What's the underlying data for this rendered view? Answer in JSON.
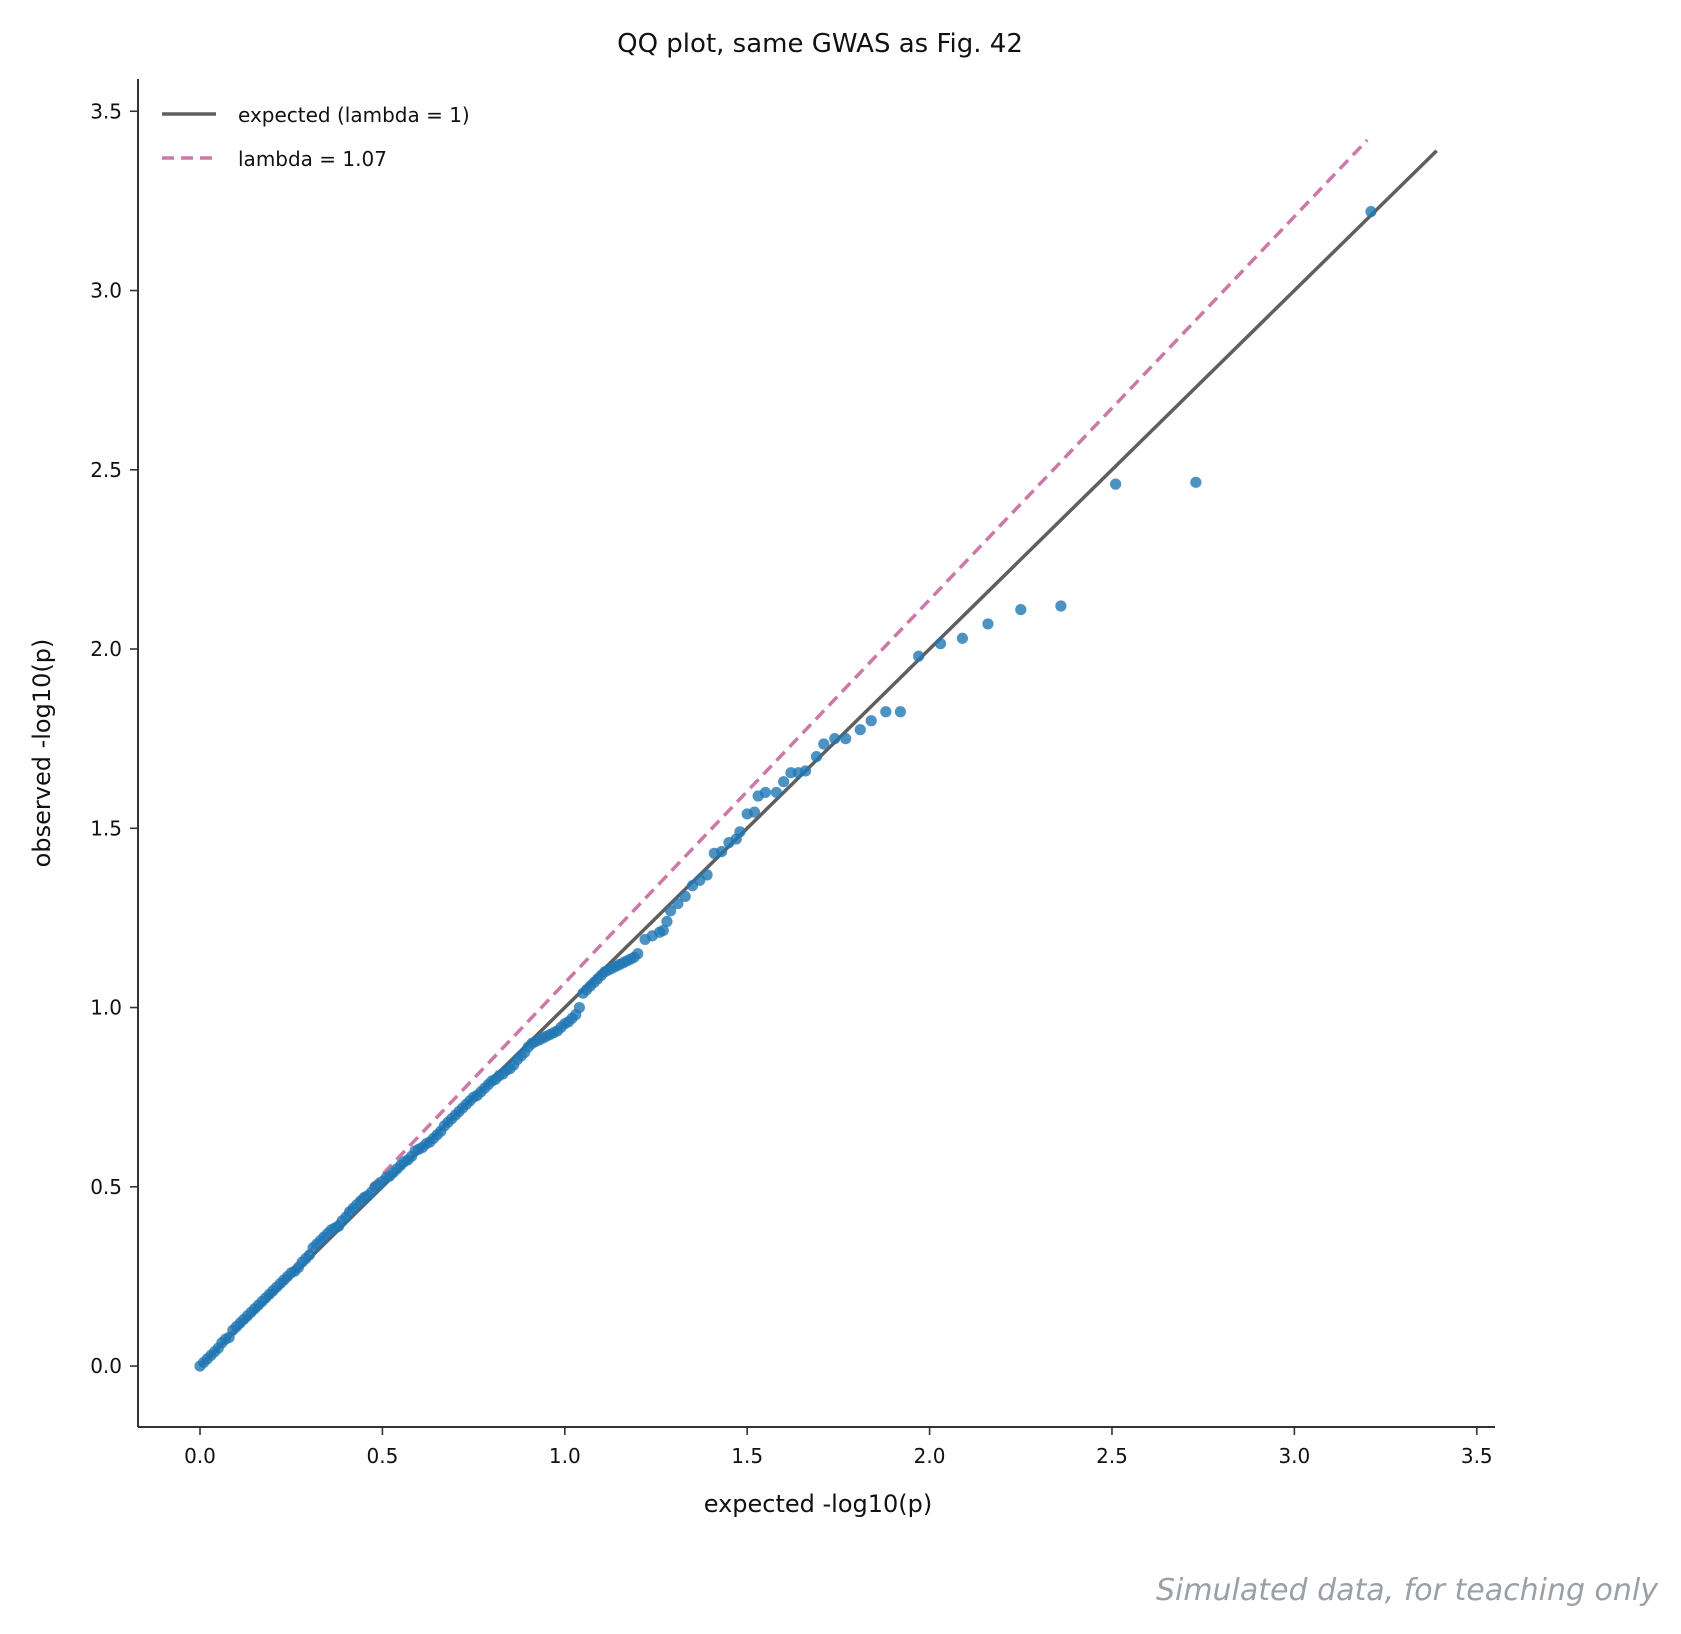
{
  "chart_data": {
    "type": "scatter",
    "title": "QQ plot, same GWAS as Fig. 42",
    "xlabel": "expected -log10(p)",
    "ylabel": "observed -log10(p)",
    "xlim": [
      -0.17,
      3.55
    ],
    "ylim": [
      -0.17,
      3.59
    ],
    "x_ticks": [
      0.0,
      0.5,
      1.0,
      1.5,
      2.0,
      2.5,
      3.0,
      3.5
    ],
    "x_tick_labels": [
      "0.0",
      "0.5",
      "1.0",
      "1.5",
      "2.0",
      "2.5",
      "3.0",
      "3.5"
    ],
    "y_ticks": [
      0.0,
      0.5,
      1.0,
      1.5,
      2.0,
      2.5,
      3.0,
      3.5
    ],
    "y_tick_labels": [
      "0.0",
      "0.5",
      "1.0",
      "1.5",
      "2.0",
      "2.5",
      "3.0",
      "3.5"
    ],
    "grid": false,
    "legend_position": "top-left",
    "colors": {
      "points": "#1f77b4",
      "expected_line": "#5f5f5f",
      "lambda_line": "#cc79a7"
    },
    "lines": [
      {
        "name": "expected (lambda = 1)",
        "style": "solid",
        "x": [
          0.0,
          3.39
        ],
        "y": [
          0.0,
          3.39
        ]
      },
      {
        "name": "lambda = 1.07",
        "style": "dashed",
        "x": [
          0.0,
          3.2
        ],
        "y": [
          0.0,
          3.42
        ]
      }
    ],
    "series": [
      {
        "name": "",
        "type": "scatter",
        "points": [
          [
            0.0,
            0.0
          ],
          [
            0.01,
            0.01
          ],
          [
            0.02,
            0.02
          ],
          [
            0.03,
            0.03
          ],
          [
            0.04,
            0.04
          ],
          [
            0.05,
            0.05
          ],
          [
            0.06,
            0.065
          ],
          [
            0.07,
            0.075
          ],
          [
            0.08,
            0.08
          ],
          [
            0.09,
            0.1
          ],
          [
            0.1,
            0.11
          ],
          [
            0.11,
            0.12
          ],
          [
            0.12,
            0.13
          ],
          [
            0.13,
            0.14
          ],
          [
            0.14,
            0.15
          ],
          [
            0.15,
            0.16
          ],
          [
            0.16,
            0.17
          ],
          [
            0.17,
            0.18
          ],
          [
            0.18,
            0.19
          ],
          [
            0.19,
            0.2
          ],
          [
            0.2,
            0.21
          ],
          [
            0.21,
            0.22
          ],
          [
            0.22,
            0.23
          ],
          [
            0.23,
            0.24
          ],
          [
            0.24,
            0.25
          ],
          [
            0.25,
            0.26
          ],
          [
            0.26,
            0.265
          ],
          [
            0.27,
            0.275
          ],
          [
            0.28,
            0.29
          ],
          [
            0.29,
            0.3
          ],
          [
            0.3,
            0.31
          ],
          [
            0.31,
            0.33
          ],
          [
            0.32,
            0.34
          ],
          [
            0.33,
            0.35
          ],
          [
            0.34,
            0.36
          ],
          [
            0.35,
            0.37
          ],
          [
            0.36,
            0.38
          ],
          [
            0.37,
            0.385
          ],
          [
            0.38,
            0.39
          ],
          [
            0.39,
            0.405
          ],
          [
            0.4,
            0.415
          ],
          [
            0.41,
            0.43
          ],
          [
            0.42,
            0.44
          ],
          [
            0.43,
            0.45
          ],
          [
            0.44,
            0.46
          ],
          [
            0.45,
            0.47
          ],
          [
            0.46,
            0.475
          ],
          [
            0.47,
            0.485
          ],
          [
            0.48,
            0.5
          ],
          [
            0.49,
            0.505
          ],
          [
            0.5,
            0.515
          ],
          [
            0.51,
            0.525
          ],
          [
            0.52,
            0.53
          ],
          [
            0.53,
            0.54
          ],
          [
            0.54,
            0.55
          ],
          [
            0.55,
            0.56
          ],
          [
            0.56,
            0.57
          ],
          [
            0.57,
            0.575
          ],
          [
            0.58,
            0.585
          ],
          [
            0.59,
            0.6
          ],
          [
            0.6,
            0.605
          ],
          [
            0.61,
            0.61
          ],
          [
            0.62,
            0.62
          ],
          [
            0.63,
            0.625
          ],
          [
            0.64,
            0.635
          ],
          [
            0.65,
            0.645
          ],
          [
            0.66,
            0.655
          ],
          [
            0.67,
            0.67
          ],
          [
            0.68,
            0.68
          ],
          [
            0.69,
            0.69
          ],
          [
            0.7,
            0.7
          ],
          [
            0.71,
            0.71
          ],
          [
            0.72,
            0.72
          ],
          [
            0.73,
            0.73
          ],
          [
            0.74,
            0.74
          ],
          [
            0.75,
            0.75
          ],
          [
            0.76,
            0.755
          ],
          [
            0.77,
            0.765
          ],
          [
            0.78,
            0.775
          ],
          [
            0.79,
            0.785
          ],
          [
            0.8,
            0.795
          ],
          [
            0.81,
            0.8
          ],
          [
            0.82,
            0.81
          ],
          [
            0.83,
            0.815
          ],
          [
            0.84,
            0.825
          ],
          [
            0.85,
            0.83
          ],
          [
            0.86,
            0.84
          ],
          [
            0.87,
            0.855
          ],
          [
            0.88,
            0.865
          ],
          [
            0.89,
            0.875
          ],
          [
            0.9,
            0.89
          ],
          [
            0.91,
            0.9
          ],
          [
            0.92,
            0.905
          ],
          [
            0.93,
            0.91
          ],
          [
            0.94,
            0.915
          ],
          [
            0.95,
            0.92
          ],
          [
            0.96,
            0.925
          ],
          [
            0.97,
            0.93
          ],
          [
            0.98,
            0.935
          ],
          [
            0.99,
            0.945
          ],
          [
            1.0,
            0.955
          ],
          [
            1.01,
            0.96
          ],
          [
            1.02,
            0.97
          ],
          [
            1.03,
            0.98
          ],
          [
            1.04,
            1.0
          ],
          [
            1.05,
            1.04
          ],
          [
            1.06,
            1.05
          ],
          [
            1.07,
            1.06
          ],
          [
            1.08,
            1.07
          ],
          [
            1.09,
            1.08
          ],
          [
            1.1,
            1.09
          ],
          [
            1.11,
            1.1
          ],
          [
            1.12,
            1.105
          ],
          [
            1.13,
            1.11
          ],
          [
            1.14,
            1.115
          ],
          [
            1.15,
            1.12
          ],
          [
            1.16,
            1.125
          ],
          [
            1.17,
            1.13
          ],
          [
            1.18,
            1.135
          ],
          [
            1.19,
            1.14
          ],
          [
            1.2,
            1.15
          ],
          [
            1.22,
            1.19
          ],
          [
            1.24,
            1.2
          ],
          [
            1.26,
            1.21
          ],
          [
            1.27,
            1.215
          ],
          [
            1.28,
            1.24
          ],
          [
            1.29,
            1.27
          ],
          [
            1.31,
            1.29
          ],
          [
            1.33,
            1.31
          ],
          [
            1.35,
            1.34
          ],
          [
            1.37,
            1.355
          ],
          [
            1.39,
            1.37
          ],
          [
            1.41,
            1.43
          ],
          [
            1.43,
            1.435
          ],
          [
            1.45,
            1.46
          ],
          [
            1.47,
            1.47
          ],
          [
            1.48,
            1.49
          ],
          [
            1.5,
            1.54
          ],
          [
            1.52,
            1.545
          ],
          [
            1.53,
            1.59
          ],
          [
            1.55,
            1.6
          ],
          [
            1.58,
            1.6
          ],
          [
            1.6,
            1.63
          ],
          [
            1.62,
            1.655
          ],
          [
            1.64,
            1.655
          ],
          [
            1.66,
            1.66
          ],
          [
            1.69,
            1.7
          ],
          [
            1.71,
            1.735
          ],
          [
            1.74,
            1.75
          ],
          [
            1.77,
            1.75
          ],
          [
            1.81,
            1.775
          ],
          [
            1.84,
            1.8
          ],
          [
            1.88,
            1.825
          ],
          [
            1.92,
            1.825
          ],
          [
            1.97,
            1.98
          ],
          [
            2.03,
            2.015
          ],
          [
            2.09,
            2.03
          ],
          [
            2.16,
            2.07
          ],
          [
            2.25,
            2.11
          ],
          [
            2.36,
            2.12
          ],
          [
            2.51,
            2.46
          ],
          [
            2.73,
            2.465
          ],
          [
            3.21,
            3.22
          ]
        ]
      }
    ],
    "watermark": "Simulated data, for teaching only"
  }
}
